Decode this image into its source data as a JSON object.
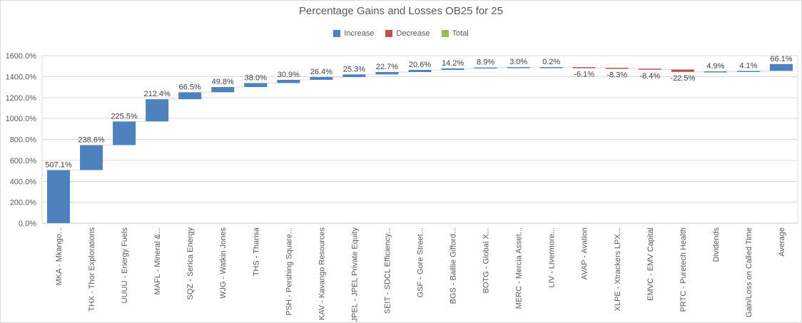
{
  "chart_data": {
    "type": "bar",
    "subtype": "waterfall",
    "title": "Percentage Gains and Losses OB25 for 25",
    "legend": [
      {
        "label": "Increase",
        "color": "#4F81BD"
      },
      {
        "label": "Decrease",
        "color": "#C0504D"
      },
      {
        "label": "Total",
        "color": "#9BBB59"
      }
    ],
    "categories": [
      "MKA - Mkango...",
      "THX - Thor Explorations",
      "UUUU - Energy Fuels",
      "MAFL - Mineral &...",
      "SQZ - Serica Energy",
      "WJG - Watkin Jones",
      "THS - Tharisa",
      "PSH - Pershing Square...",
      "KAV - Kavango Resources",
      "JPEL - JPEL Private Equity",
      "SEIT - SDCL Efficiency...",
      "GSF - Gore Street...",
      "BGS - Baillie Gifford...",
      "BOTG - Global X...",
      "MERC - Mercia Asset...",
      "LIV - Livermore...",
      "AVAP - Avation",
      "XLPE - Xtrackers LPX...",
      "EMVC - EMV Capital",
      "PRTC - Puretech Health",
      "Dividends",
      "Gain/Loss on Called Time",
      "Average"
    ],
    "values": [
      507.1,
      238.6,
      225.5,
      212.4,
      66.5,
      49.8,
      38.0,
      30.9,
      26.4,
      25.3,
      22.7,
      20.6,
      14.2,
      8.9,
      3.0,
      0.2,
      -6.1,
      -8.3,
      -8.4,
      -22.5,
      4.9,
      4.1,
      66.1
    ],
    "labels": [
      "507.1%",
      "238.6%",
      "225.5%",
      "212.4%",
      "66.5%",
      "49.8%",
      "38.0%",
      "30.9%",
      "26.4%",
      "25.3%",
      "22.7%",
      "20.6%",
      "14.2%",
      "8.9%",
      "3.0%",
      "0.2%",
      "-6.1%",
      "-8.3%",
      "-8.4%",
      "-22.5%",
      "4.9%",
      "4.1%",
      "66.1%"
    ],
    "ylim": [
      0,
      1600
    ],
    "y_tick_step": 200,
    "y_ticks": [
      "0.0%",
      "200.0%",
      "400.0%",
      "600.0%",
      "800.0%",
      "1000.0%",
      "1200.0%",
      "1400.0%",
      "1600.0%"
    ],
    "grid": true,
    "legend_position": "top",
    "colors": {
      "increase": "#4F81BD",
      "decrease": "#C0504D",
      "total": "#9BBB59",
      "gridline": "#D9D9D9",
      "axis_line": "#C6C6C6",
      "axis_text": "#595959",
      "label_text": "#404040"
    }
  }
}
